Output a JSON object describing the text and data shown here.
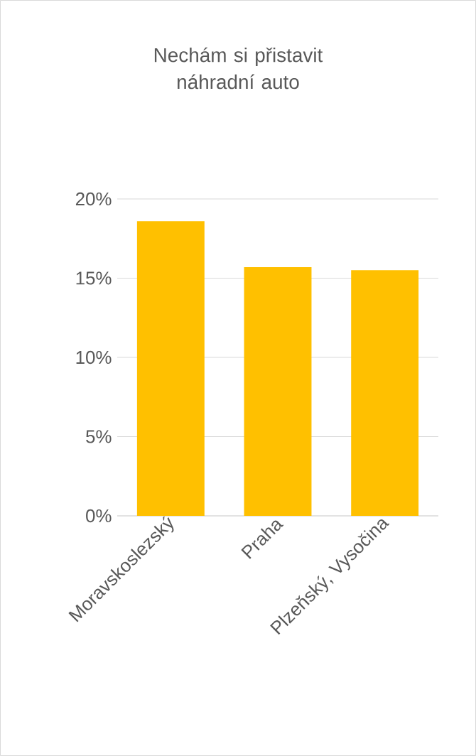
{
  "chart_data": {
    "type": "bar",
    "title": "Nechám si přistavit náhradní auto",
    "categories": [
      "Moravskoslezský",
      "Praha",
      "Plzeňský, Vysočina"
    ],
    "values": [
      18.6,
      15.7,
      15.5
    ],
    "color": "#ffc000",
    "ylim": [
      0,
      20
    ],
    "yticks": [
      {
        "value": 0,
        "label": "0%"
      },
      {
        "value": 5,
        "label": "5%"
      },
      {
        "value": 10,
        "label": "10%"
      },
      {
        "value": 15,
        "label": "15%"
      },
      {
        "value": 20,
        "label": "20%"
      }
    ],
    "grid": "y"
  }
}
